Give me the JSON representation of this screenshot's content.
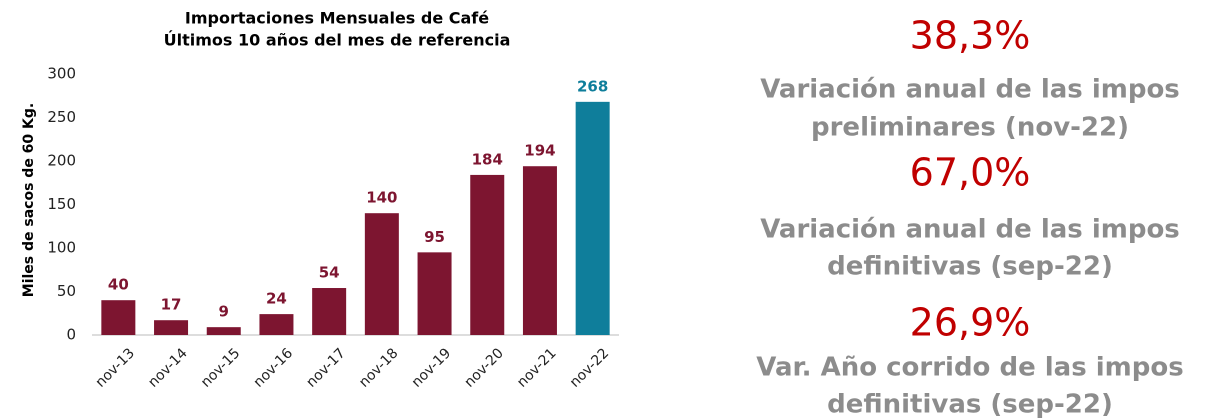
{
  "chart_data": {
    "type": "bar",
    "title": [
      "Importaciones Mensuales de Café",
      "Últimos 10 años del mes de referencia"
    ],
    "y_label": "Miles de sacos de 60 Kg.",
    "categories": [
      "nov-13",
      "nov-14",
      "nov-15",
      "nov-16",
      "nov-17",
      "nov-18",
      "nov-19",
      "nov-20",
      "nov-21",
      "nov-22"
    ],
    "values": [
      40,
      17,
      9,
      24,
      54,
      140,
      95,
      184,
      194,
      268
    ],
    "colors": [
      "#7d1530",
      "#7d1530",
      "#7d1530",
      "#7d1530",
      "#7d1530",
      "#7d1530",
      "#7d1530",
      "#7d1530",
      "#7d1530",
      "#0f7e9b"
    ],
    "ylim": [
      0,
      300
    ],
    "yticks": [
      0,
      50,
      100,
      150,
      200,
      250,
      300
    ],
    "grid": false
  },
  "indicators": [
    {
      "value": "38,3%",
      "description": [
        "Variación anual de las impos",
        "preliminares (nov-22)"
      ]
    },
    {
      "value": "67,0%",
      "description": [
        "Variación anual de las impos",
        "definitivas (sep-22)"
      ]
    },
    {
      "value": "26,9%",
      "description": [
        "Var. Año corrido de las impos",
        "definitivas (sep-22)"
      ]
    }
  ]
}
